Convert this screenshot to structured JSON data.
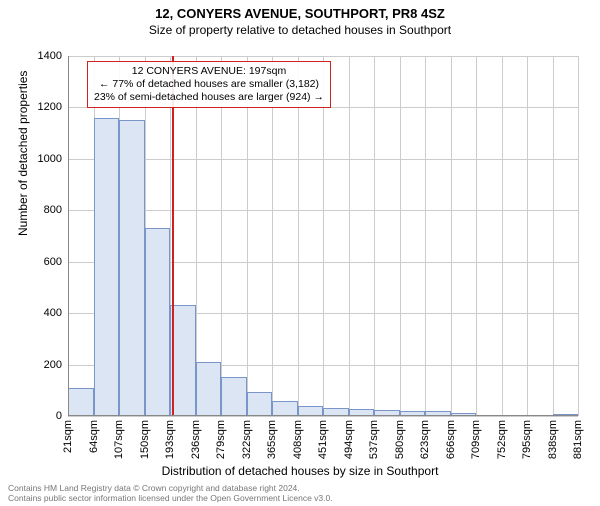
{
  "header": {
    "title": "12, CONYERS AVENUE, SOUTHPORT, PR8 4SZ",
    "subtitle": "Size of property relative to detached houses in Southport"
  },
  "chart": {
    "type": "histogram",
    "background_color": "#ffffff",
    "grid_color": "#cccccc",
    "bar_fill": "#dbe5f4",
    "bar_stroke": "#7a95c8",
    "marker_color": "#d02020",
    "ylim": [
      0,
      1400
    ],
    "ytick_step": 200,
    "y_ticks": [
      0,
      200,
      400,
      600,
      800,
      1000,
      1200,
      1400
    ],
    "x_tick_labels": [
      "21sqm",
      "64sqm",
      "107sqm",
      "150sqm",
      "193sqm",
      "236sqm",
      "279sqm",
      "322sqm",
      "365sqm",
      "408sqm",
      "451sqm",
      "494sqm",
      "537sqm",
      "580sqm",
      "623sqm",
      "666sqm",
      "709sqm",
      "752sqm",
      "795sqm",
      "838sqm",
      "881sqm"
    ],
    "bars": [
      110,
      1160,
      1150,
      730,
      430,
      210,
      150,
      95,
      60,
      40,
      30,
      28,
      25,
      18,
      20,
      10,
      0,
      0,
      0,
      8
    ],
    "marker_x_index": 4.08,
    "y_axis_title": "Number of detached properties",
    "x_axis_title": "Distribution of detached houses by size in Southport"
  },
  "annotation": {
    "line1": "12 CONYERS AVENUE: 197sqm",
    "line2": "← 77% of detached houses are smaller (3,182)",
    "line3": "23% of semi-detached houses are larger (924) →"
  },
  "footer": {
    "line1": "Contains HM Land Registry data © Crown copyright and database right 2024.",
    "line2": "Contains public sector information licensed under the Open Government Licence v3.0."
  }
}
